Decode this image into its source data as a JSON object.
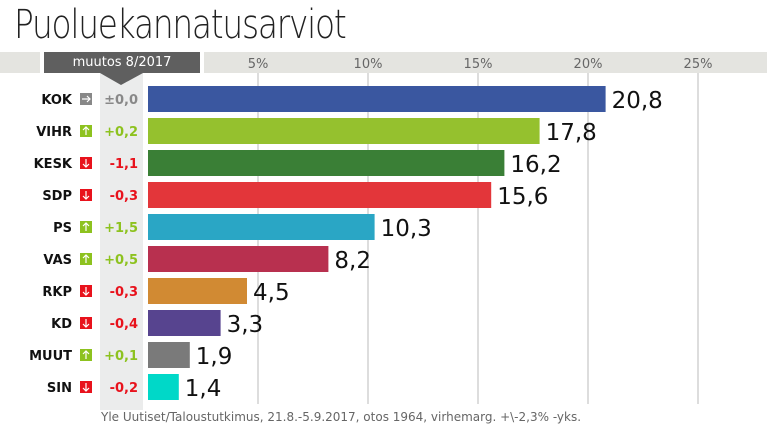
{
  "title": "Puoluekannatusarviot",
  "change_header": "muutos 8/2017",
  "source": "Yle Uutiset/Taloustutkimus, 21.8.-5.9.2017, otos 1964, virhemarg. +\\-2,3% -yks.",
  "chart_data": {
    "type": "bar",
    "orientation": "horizontal",
    "xlim": [
      0,
      27
    ],
    "xticks": [
      5,
      10,
      15,
      20,
      25
    ],
    "xtick_labels": [
      "5%",
      "10%",
      "15%",
      "20%",
      "25%"
    ],
    "grid": true,
    "categories": [
      "KOK",
      "VIHR",
      "KESK",
      "SDP",
      "PS",
      "VAS",
      "RKP",
      "KD",
      "MUUT",
      "SIN"
    ],
    "values": [
      20.8,
      17.8,
      16.2,
      15.6,
      10.3,
      8.2,
      4.5,
      3.3,
      1.9,
      1.4
    ],
    "value_labels": [
      "20,8",
      "17,8",
      "16,2",
      "15,6",
      "10,3",
      "8,2",
      "4,5",
      "3,3",
      "1,9",
      "1,4"
    ],
    "colors": [
      "#3a57a0",
      "#95c12e",
      "#3a7f36",
      "#e3363a",
      "#2aa6c5",
      "#b8304f",
      "#d18a33",
      "#57448f",
      "#7a7a7a",
      "#00d8c8"
    ],
    "changes": [
      "±0,0",
      "+0,2",
      "-1,1",
      "-0,3",
      "+1,5",
      "+0,5",
      "-0,3",
      "-0,4",
      "+0,1",
      "-0,2"
    ],
    "change_direction": [
      "flat",
      "up",
      "down",
      "down",
      "up",
      "up",
      "down",
      "down",
      "up",
      "down"
    ]
  },
  "direction_colors": {
    "flat": "#888888",
    "up": "#8dc21f",
    "down": "#e8121c"
  },
  "direction_icons": {
    "flat": "arrow-right-icon",
    "up": "arrow-up-icon",
    "down": "arrow-down-icon"
  }
}
